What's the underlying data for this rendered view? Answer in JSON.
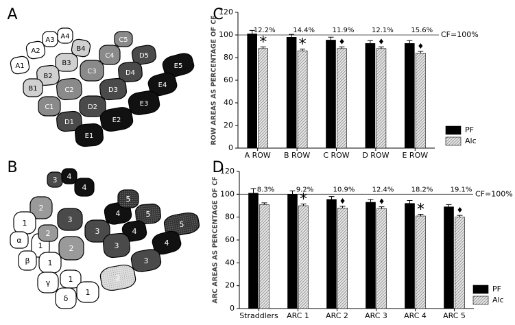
{
  "diagrams": [
    {
      "panel_label": "A",
      "cells": [
        "A1",
        "A2",
        "A3",
        "A4",
        "B4",
        "B3",
        "B2",
        "B1",
        "C1",
        "C2",
        "C3",
        "C4",
        "C5",
        "D5",
        "D4",
        "D3",
        "D2",
        "D1",
        "E5",
        "E4",
        "E3",
        "E2",
        "E1"
      ]
    },
    {
      "panel_label": "B",
      "cells": [
        "3",
        "4",
        "2",
        "4",
        "3",
        "4",
        "5",
        "5",
        "5",
        "1",
        "α",
        "1",
        "2",
        "3",
        "4",
        "2",
        "3",
        "4",
        "β",
        "1",
        "3",
        "γ",
        "1",
        "2",
        "δ",
        "1"
      ]
    }
  ],
  "chart_data": [
    {
      "type": "bar",
      "panel_label": "C",
      "y_label": "ROW AREAS AS PERCENTAGE OF CF",
      "categories": [
        "A ROW",
        "B ROW",
        "C ROW",
        "D ROW",
        "E ROW"
      ],
      "series": [
        {
          "name": "PF",
          "color": "#000000",
          "values": [
            101,
            98,
            95.5,
            92.5,
            92.5
          ],
          "errors": [
            3,
            2.5,
            2.5,
            2.5,
            2.5
          ]
        },
        {
          "name": "Alc",
          "color": "#9a9a9a",
          "hatch": true,
          "values": [
            88,
            86,
            88,
            88,
            84
          ],
          "errors": [
            1.5,
            1.5,
            1.5,
            1.5,
            1.5
          ]
        }
      ],
      "annotations": [
        "12.2%",
        "14.4%",
        "11.9%",
        "12.1%",
        "15.6%"
      ],
      "markers": [
        "*",
        "*",
        "♦",
        "♦",
        "♦"
      ],
      "reference_line": {
        "value": 100,
        "label": "CF=100%"
      },
      "ylim": [
        0,
        120
      ],
      "yticks": [
        0,
        20,
        40,
        60,
        80,
        100,
        120
      ],
      "legend": "lower-right"
    },
    {
      "type": "bar",
      "panel_label": "D",
      "y_label": "ARC AREAS AS PERCENTAGE OF CF",
      "categories": [
        "Straddlers",
        "ARC 1",
        "ARC 2",
        "ARC 3",
        "ARC 4",
        "ARC 5"
      ],
      "series": [
        {
          "name": "PF",
          "color": "#000000",
          "values": [
            101,
            100,
            95.5,
            93,
            92,
            89
          ],
          "errors": [
            4,
            3,
            2.5,
            2.5,
            2.5,
            2
          ]
        },
        {
          "name": "Alc",
          "color": "#9a9a9a",
          "hatch": true,
          "values": [
            91,
            90,
            88,
            87.5,
            81,
            80
          ],
          "errors": [
            1.5,
            1.5,
            1.5,
            1.5,
            1.5,
            1.5
          ]
        }
      ],
      "annotations": [
        "8.3%",
        "9.2%",
        "10.9%",
        "12.4%",
        "18.2%",
        "19.1%"
      ],
      "markers": [
        null,
        "*",
        "♦",
        "♦",
        "*",
        "♦"
      ],
      "reference_line": {
        "value": 100,
        "label": "CF=100%"
      },
      "ylim": [
        0,
        120
      ],
      "yticks": [
        0,
        20,
        40,
        60,
        80,
        100,
        120
      ],
      "legend": "lower-right"
    }
  ]
}
